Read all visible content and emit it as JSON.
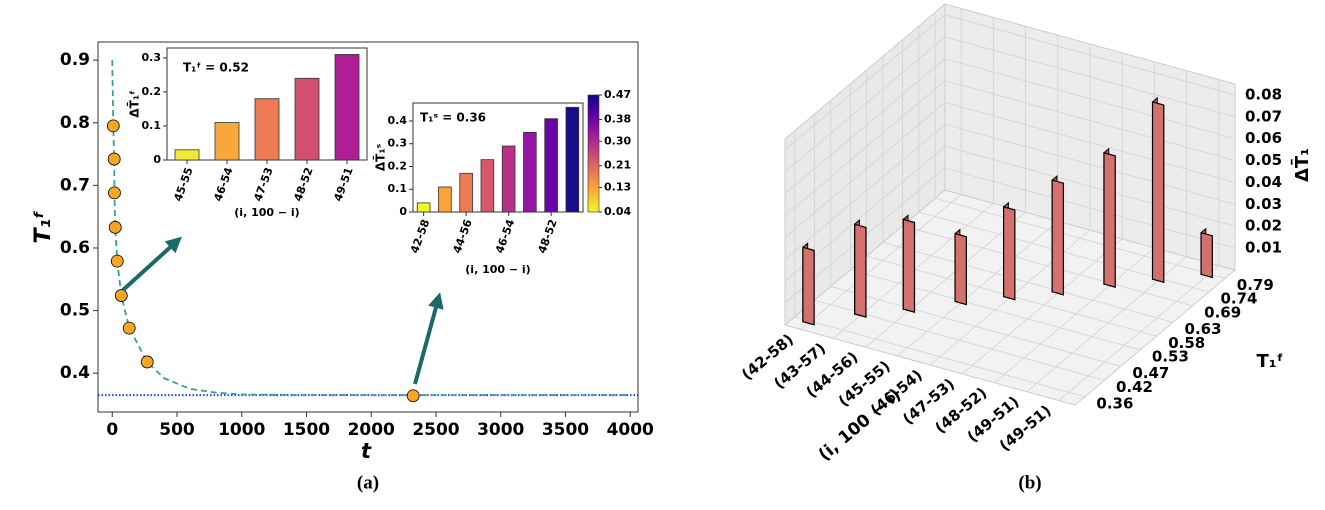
{
  "chart_data": [
    {
      "type": "line",
      "panel_label": "(a)",
      "xlabel": "t",
      "ylabel": "T₁ᶠ",
      "xlim": [
        -110,
        4060
      ],
      "ylim": [
        0.338,
        0.929
      ],
      "xticks": [
        0,
        500,
        1000,
        1500,
        2000,
        2500,
        3000,
        3500,
        4000
      ],
      "yticks": [
        0.4,
        0.5,
        0.6,
        0.7,
        0.8,
        0.9
      ],
      "hline": {
        "value": 0.365,
        "color": "#1f3fff"
      },
      "series": [
        {
          "style": "dashed",
          "color": "#3a9e9e",
          "x": [
            0,
            8,
            15,
            17,
            23,
            39,
            70,
            131,
            270,
            400,
            600,
            800,
            1000,
            1500,
            2000,
            4000
          ],
          "values": [
            0.9,
            0.795,
            0.742,
            0.688,
            0.633,
            0.579,
            0.524,
            0.472,
            0.418,
            0.392,
            0.375,
            0.369,
            0.366,
            0.365,
            0.365,
            0.365
          ]
        },
        {
          "style": "markers",
          "color": "#f5a623",
          "x": [
            8,
            15,
            17,
            23,
            39,
            70,
            131,
            270,
            2324
          ],
          "values": [
            0.795,
            0.742,
            0.688,
            0.633,
            0.579,
            0.524,
            0.472,
            0.418,
            0.364
          ]
        }
      ]
    },
    {
      "type": "bar",
      "annotation": "T₁ᶠ = 0.52",
      "xlabel": "(i, 100 − i)",
      "ylabel": "ΔT̄₁ᶠ",
      "categories": [
        "45-55",
        "46-54",
        "47-53",
        "48-52",
        "49-51"
      ],
      "values": [
        0.03,
        0.11,
        0.18,
        0.24,
        0.31
      ],
      "colors": [
        "#f3e83a",
        "#f8a83a",
        "#ec7a54",
        "#d15071",
        "#b01f98"
      ],
      "ylim": [
        0,
        0.329
      ],
      "yticks": [
        0.0,
        0.1,
        0.2,
        0.3
      ]
    },
    {
      "type": "bar",
      "annotation": "T₁ˢ = 0.36",
      "xlabel": "(i, 100 − i)",
      "ylabel": "ΔT̄₁ˢ",
      "categories": [
        "42-58",
        null,
        "44-56",
        null,
        "46-54",
        null,
        "48-52",
        null
      ],
      "values": [
        0.04,
        0.11,
        0.17,
        0.23,
        0.29,
        0.35,
        0.41,
        0.46
      ],
      "colors": [
        "#f0f921",
        "#fba238",
        "#ee7b51",
        "#d8576b",
        "#b7318a",
        "#9414a3",
        "#6a00a8",
        "#1a0a8c"
      ],
      "ylim": [
        0,
        0.479
      ],
      "yticks": [
        0.0,
        0.1,
        0.2,
        0.3,
        0.4
      ],
      "colorbar": {
        "lim": [
          0.04,
          0.47
        ],
        "ticks": [
          0.04,
          0.13,
          0.21,
          {
            "value": 0.3,
            "label": "0.30"
          },
          0.38,
          0.47
        ],
        "colormap": [
          "#f0f921",
          "#fca636",
          "#e16462",
          "#b12a90",
          "#6a00a8",
          "#0d0887"
        ]
      }
    },
    {
      "type": "bar3d",
      "panel_label": "(b)",
      "xlabel": "(i, 100 − i)",
      "ylabel": "T₁ᶠ",
      "zlabel": "ΔT̄₁",
      "categories": [
        "(42-58)",
        "(43-57)",
        "(44-56)",
        "(45-55)",
        "(46-54)",
        "(47-53)",
        "(48-52)",
        "(49-51)",
        "(49-51)"
      ],
      "ylim": [
        0.33,
        0.82
      ],
      "yticks": [
        0.36,
        0.42,
        0.47,
        0.53,
        0.58,
        0.63,
        0.69,
        0.74,
        0.79
      ],
      "zlim": [
        0,
        0.085
      ],
      "zticks": [
        0.01,
        0.02,
        0.03,
        0.04,
        0.05,
        0.06,
        0.07,
        0.08
      ],
      "bar_y": [
        0.36,
        0.42,
        0.47,
        0.53,
        0.58,
        0.63,
        0.69,
        0.74,
        0.79
      ],
      "values": [
        0.034,
        0.041,
        0.041,
        0.031,
        0.041,
        0.051,
        0.06,
        0.081,
        0.019
      ],
      "color": "#d4706e"
    }
  ]
}
